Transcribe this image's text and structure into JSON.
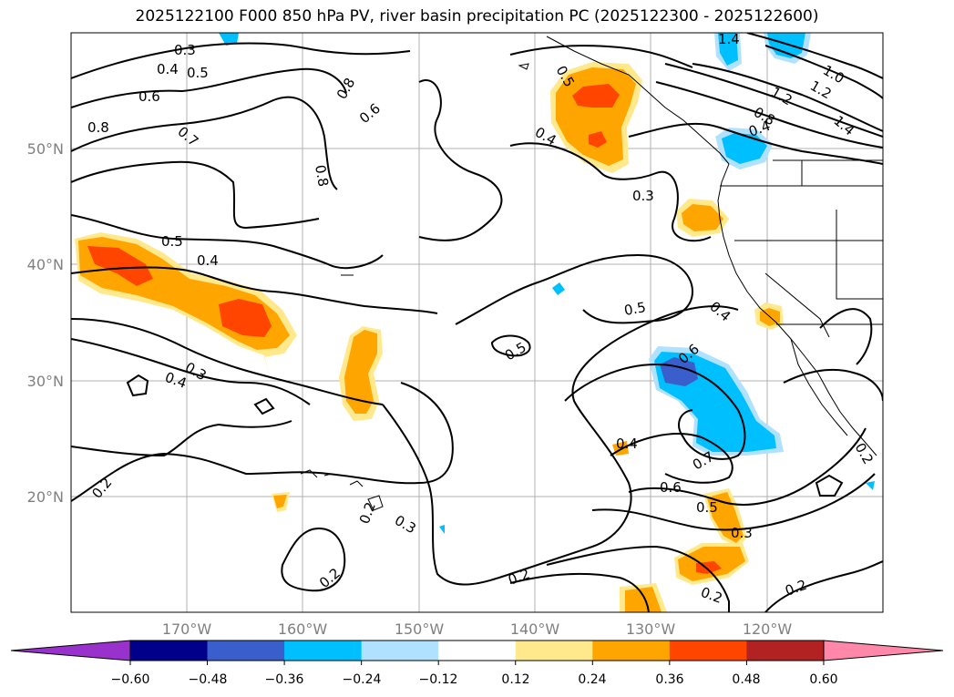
{
  "title": "2025122100 F000 850 hPa PV, river basin precipitation PC (2025122300 - 2025122600)",
  "lat_labels": [
    "50°N",
    "40°N",
    "30°N",
    "20°N"
  ],
  "lon_labels": [
    "170°W",
    "160°W",
    "150°W",
    "140°W",
    "130°W",
    "120°W"
  ],
  "contour_labels": [
    "0.3",
    "0.4",
    "0.5",
    "0.6",
    "0.8",
    "0.7",
    "0.8",
    "0.8",
    "0.6",
    "0.5",
    "0.4",
    "0.3",
    "1.4",
    "1.0",
    "1.2",
    "1.2",
    "1.4",
    "0.8",
    "0.4",
    "0.5",
    "0.4",
    "0.3",
    "0.4",
    "0.5",
    "0.5",
    "0.4",
    "0.6",
    "0.4",
    "0.7",
    "0.6",
    "0.5",
    "0.3",
    "0.2",
    "0.2",
    "0.3",
    "0.2",
    "0.2",
    "0.2",
    "0.2",
    "0.2"
  ],
  "colorbar": {
    "ticks": [
      "−0.60",
      "−0.48",
      "−0.36",
      "−0.24",
      "−0.12",
      "0.12",
      "0.24",
      "0.36",
      "0.48",
      "0.60"
    ],
    "colors": [
      "#9932cc",
      "#00008b",
      "#3a5fcd",
      "#00bfff",
      "#b0e2ff",
      "#ffffff",
      "#ffe98c",
      "#ffa500",
      "#ff4500",
      "#b22222",
      "#ff88aa"
    ]
  }
}
